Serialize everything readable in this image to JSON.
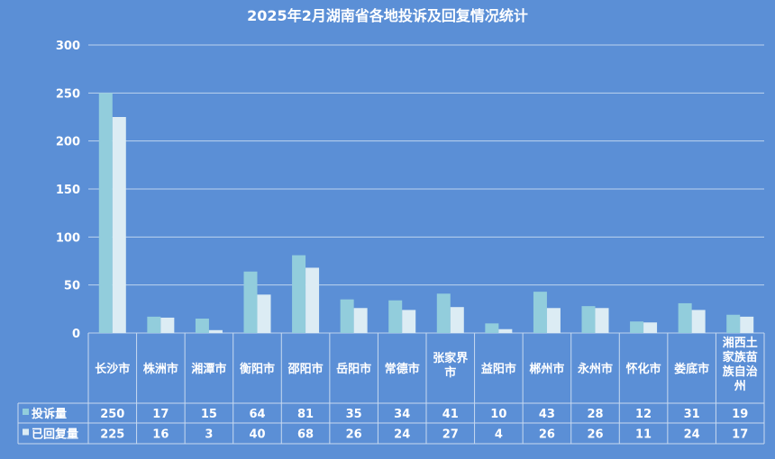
{
  "colors": {
    "background": "#5b8fd6",
    "series1": "#92cddc",
    "series2": "#dcecf4",
    "grid": "#bcd3ee",
    "table_border": "#c8daf0"
  },
  "chart_data": {
    "type": "bar",
    "title": "2025年2月湖南省各地投诉及回复情况统计",
    "categories": [
      "长沙市",
      "株洲市",
      "湘潭市",
      "衡阳市",
      "邵阳市",
      "岳阳市",
      "常德市",
      "张家界市",
      "益阳市",
      "郴州市",
      "永州市",
      "怀化市",
      "娄底市",
      "湘西土家族苗族自治州"
    ],
    "category_lines": [
      [
        "长沙市"
      ],
      [
        "株洲市"
      ],
      [
        "湘潭市"
      ],
      [
        "衡阳市"
      ],
      [
        "邵阳市"
      ],
      [
        "岳阳市"
      ],
      [
        "常德市"
      ],
      [
        "张家界",
        "市"
      ],
      [
        "益阳市"
      ],
      [
        "郴州市"
      ],
      [
        "永州市"
      ],
      [
        "怀化市"
      ],
      [
        "娄底市"
      ],
      [
        "湘西土",
        "家族苗",
        "族自治",
        "州"
      ]
    ],
    "series": [
      {
        "name": "投诉量",
        "values": [
          250,
          17,
          15,
          64,
          81,
          35,
          34,
          41,
          10,
          43,
          28,
          12,
          31,
          19
        ]
      },
      {
        "name": "已回复量",
        "values": [
          225,
          16,
          3,
          40,
          68,
          26,
          24,
          27,
          4,
          26,
          26,
          11,
          24,
          17
        ]
      }
    ],
    "ylim": [
      0,
      300
    ],
    "yticks": [
      0,
      50,
      100,
      150,
      200,
      250,
      300
    ],
    "grid": true,
    "legend": "data-table-below"
  }
}
